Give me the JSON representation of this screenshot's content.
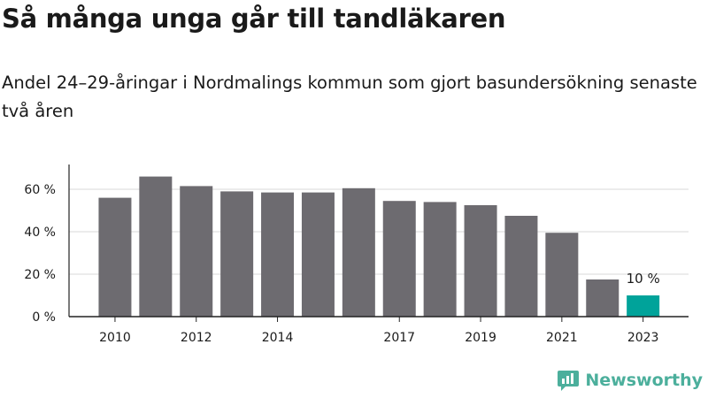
{
  "header": {
    "title": "Så många unga går till tandläkaren",
    "subtitle": "Andel 24–29-åringar i Nordmalings kommun som gjort basundersökning senaste två åren"
  },
  "brand": {
    "name": "Newsworthy",
    "color": "#4caf9c"
  },
  "colors": {
    "bar": "#6d6b70",
    "highlight": "#00a39a",
    "grid": "#d9d9d9",
    "axis": "#222222",
    "text": "#1a1a1a"
  },
  "chart_data": {
    "type": "bar",
    "title": "",
    "xlabel": "",
    "ylabel": "",
    "categories": [
      "2010",
      "2011",
      "2012",
      "2013",
      "2014",
      "2015",
      "2016",
      "2017",
      "2018",
      "2019",
      "2020",
      "2021",
      "2022",
      "2023"
    ],
    "category_labels": [
      "2010",
      "",
      "2012",
      "",
      "2014",
      "",
      "",
      "2017",
      "",
      "2019",
      "",
      "2021",
      "",
      "2023"
    ],
    "values": [
      56,
      66,
      61.5,
      59,
      58.5,
      58.5,
      60.5,
      54.5,
      54,
      52.5,
      47.5,
      39.5,
      17.5,
      10
    ],
    "highlight_index": 13,
    "data_labels": [
      {
        "index": 13,
        "text": "10 %"
      }
    ],
    "ylim": [
      0,
      70
    ],
    "yticks": [
      0,
      20,
      40,
      60
    ],
    "ytick_labels": [
      "0 %",
      "20 %",
      "40 %",
      "60 %"
    ],
    "grid": true,
    "legend": "none"
  }
}
